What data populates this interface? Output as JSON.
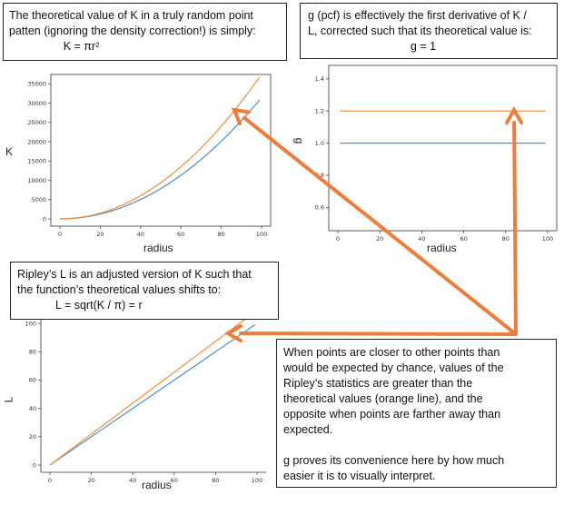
{
  "colors": {
    "theoretical": "#f28e2b",
    "observed": "#4c8fcd",
    "arrow": "#ef7d3a",
    "axis": "#333333"
  },
  "boxes": {
    "k_note": {
      "line1": "The theoretical value of K in a truly random point",
      "line2": "patten (ignoring the density correction!) is simply:",
      "formula": "K = πr²"
    },
    "g_note": {
      "line1": "g (pcf) is effectively the first derivative of K /",
      "line2": "L, corrected such that its theoretical value is:",
      "formula": "g = 1"
    },
    "l_note": {
      "line1": "Ripley’s L is an adjusted version of K such that",
      "line2": "the function’s theoretical values shifts to:",
      "formula": "L = sqrt(K / π) = r"
    },
    "explain_note": {
      "para1_line1": "When points are closer to other points than",
      "para1_line2": "would be expected by chance, values of the",
      "para1_line3": "Ripley’s statistics are greater than the",
      "para1_line4": "theoretical values (orange line), and the",
      "para1_line5": "opposite when points are farther away than",
      "para1_line6": "expected.",
      "para2_line1": "g proves its convenience here by how much",
      "para2_line2": "easier it is to visually interpret."
    }
  },
  "chart_data": [
    {
      "type": "line",
      "xlabel": "radius",
      "ylabel": "K",
      "xlim": [
        0,
        100
      ],
      "ylim": [
        0,
        36000
      ],
      "xticks": [
        0,
        20,
        40,
        60,
        80,
        100
      ],
      "yticks": [
        0,
        5000,
        10000,
        15000,
        20000,
        25000,
        30000,
        35000
      ],
      "x": [
        0,
        10,
        20,
        30,
        40,
        50,
        60,
        70,
        80,
        90,
        99
      ],
      "series": [
        {
          "values": [
            0,
            314,
            1257,
            2827,
            5027,
            7854,
            11310,
            15394,
            20106,
            25447,
            30791
          ]
        },
        {
          "values": [
            0,
            375,
            1500,
            3375,
            6000,
            9375,
            13500,
            18375,
            24000,
            30375,
            36750
          ]
        }
      ]
    },
    {
      "type": "line",
      "xlabel": "radius",
      "ylabel": "g",
      "xlim": [
        0,
        100
      ],
      "ylim": [
        0.5,
        1.45
      ],
      "xticks": [
        0,
        20,
        40,
        60,
        80,
        100
      ],
      "yticks": [
        0.6,
        0.8,
        1.0,
        1.2,
        1.4
      ],
      "x": [
        1,
        99
      ],
      "series": [
        {
          "values": [
            1.0,
            1.0
          ]
        },
        {
          "values": [
            1.2,
            1.2
          ]
        }
      ]
    },
    {
      "type": "line",
      "xlabel": "radius",
      "ylabel": "L",
      "xlim": [
        0,
        100
      ],
      "ylim": [
        0,
        100
      ],
      "xticks": [
        0,
        20,
        40,
        60,
        80,
        100
      ],
      "yticks": [
        0,
        20,
        40,
        60,
        80,
        100
      ],
      "x": [
        0,
        99
      ],
      "series": [
        {
          "values": [
            0,
            99
          ]
        },
        {
          "values": [
            0,
            108
          ]
        }
      ]
    }
  ]
}
